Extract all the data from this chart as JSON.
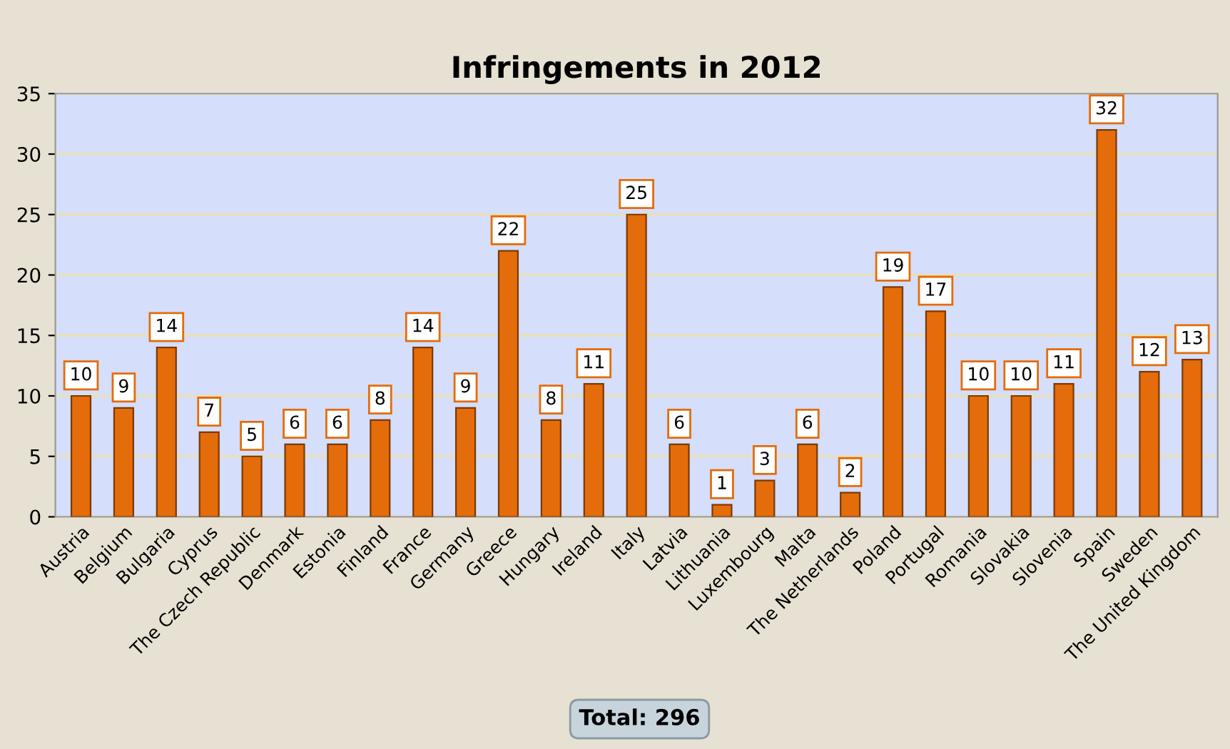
{
  "chart_data": {
    "type": "bar",
    "title": "Infringements in 2012",
    "categories": [
      "Austria",
      "Belgium",
      "Bulgaria",
      "Cyprus",
      "The Czech Republic",
      "Denmark",
      "Estonia",
      "Finland",
      "France",
      "Germany",
      "Greece",
      "Hungary",
      "Ireland",
      "Italy",
      "Latvia",
      "Lithuania",
      "Luxembourg",
      "Malta",
      "The Netherlands",
      "Poland",
      "Portugal",
      "Romania",
      "Slovakia",
      "Slovenia",
      "Spain",
      "Sweden",
      "The United Kingdom"
    ],
    "values": [
      10,
      9,
      14,
      7,
      5,
      6,
      6,
      8,
      14,
      9,
      22,
      8,
      11,
      25,
      6,
      1,
      3,
      6,
      2,
      19,
      17,
      10,
      10,
      11,
      32,
      12,
      13
    ],
    "color": "#e46c0a",
    "ylim": [
      0,
      35
    ],
    "yticks": [
      0,
      5,
      10,
      15,
      20,
      25,
      30,
      35
    ],
    "grid": "y",
    "data_labels": true,
    "annotations": [
      "Total: 296"
    ]
  }
}
